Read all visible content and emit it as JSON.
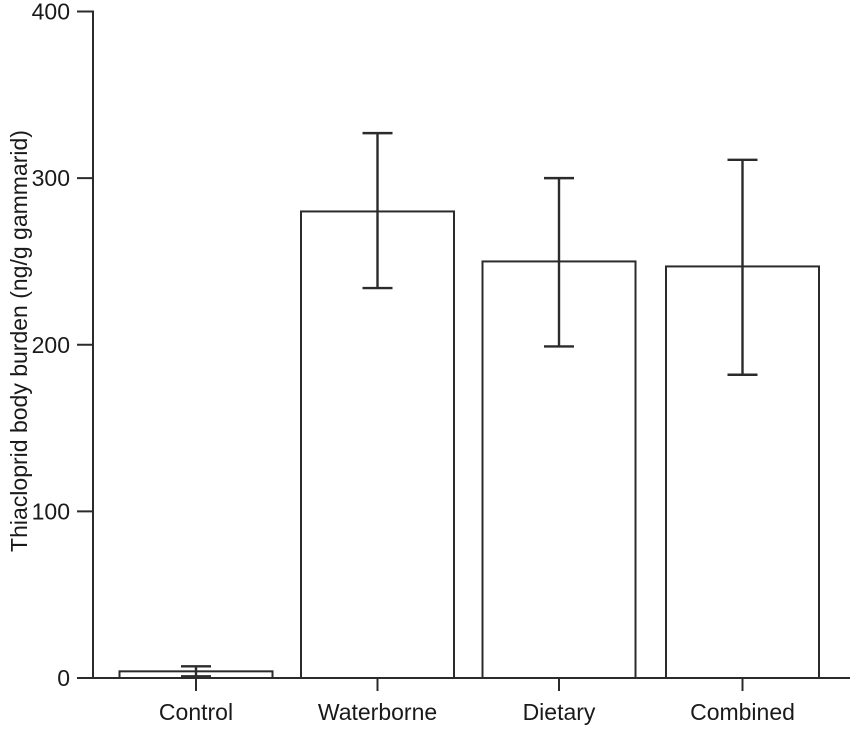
{
  "figure": {
    "description": "Bar chart with error bars showing thiacloprid body burden per exposure treatment"
  },
  "chart_data": {
    "type": "bar",
    "title": "",
    "xlabel": "",
    "ylabel": "Thiacloprid body burden (ng/g gammarid)",
    "categories": [
      "Control",
      "Waterborne",
      "Dietary",
      "Combined"
    ],
    "values": [
      4,
      280,
      250,
      247
    ],
    "error_upper": [
      7,
      327,
      300,
      311
    ],
    "error_lower": [
      1,
      234,
      199,
      182
    ],
    "ylim": [
      0,
      400
    ],
    "yticks": [
      0,
      100,
      200,
      300,
      400
    ],
    "ytick_labels": [
      "0",
      "100",
      "200",
      "300",
      "400"
    ],
    "grid": false,
    "legend": false,
    "error_bars": true,
    "bar_fill": "#ffffff",
    "line_color": "#2b2b2b",
    "text_color": "#1a1a1a",
    "background": "#ffffff"
  }
}
